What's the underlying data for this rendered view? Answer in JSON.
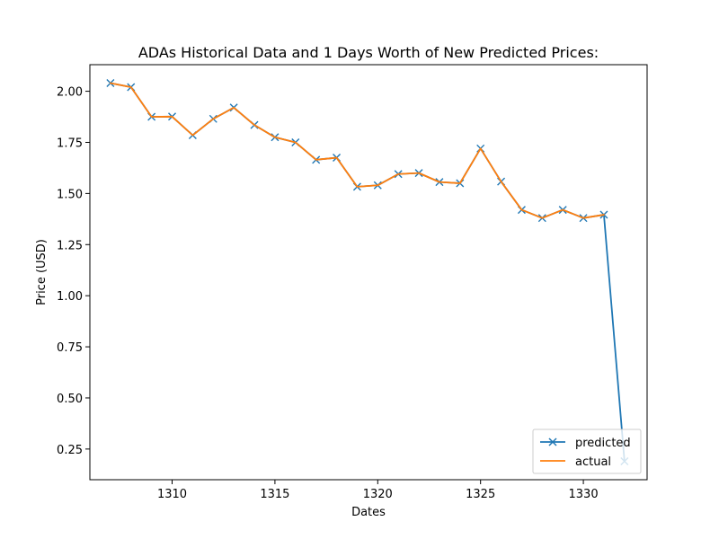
{
  "chart_data": {
    "type": "line",
    "title": "ADAs Historical Data and 1 Days Worth of New Predicted Prices:",
    "xlabel": "Dates",
    "ylabel": "Price (USD)",
    "xlim": [
      1306,
      1333.1
    ],
    "ylim": [
      0.1,
      2.13
    ],
    "x_ticks": [
      1310,
      1315,
      1320,
      1325,
      1330
    ],
    "y_ticks": [
      0.25,
      0.5,
      0.75,
      1.0,
      1.25,
      1.5,
      1.75,
      2.0
    ],
    "x_tick_labels": [
      "1310",
      "1315",
      "1320",
      "1325",
      "1330"
    ],
    "y_tick_labels": [
      "0.25",
      "0.50",
      "0.75",
      "1.00",
      "1.25",
      "1.50",
      "1.75",
      "2.00"
    ],
    "grid": false,
    "legend_position": "lower right",
    "series": [
      {
        "name": "predicted",
        "color": "#1f77b4",
        "marker": "x",
        "x": [
          1307,
          1308,
          1309,
          1310,
          1311,
          1312,
          1313,
          1314,
          1315,
          1316,
          1317,
          1318,
          1319,
          1320,
          1321,
          1322,
          1323,
          1324,
          1325,
          1326,
          1327,
          1328,
          1329,
          1330,
          1331,
          1332
        ],
        "y": [
          2.04,
          2.02,
          1.875,
          1.876,
          1.785,
          1.865,
          1.92,
          1.835,
          1.775,
          1.75,
          1.665,
          1.675,
          1.533,
          1.54,
          1.595,
          1.6,
          1.556,
          1.55,
          1.72,
          1.558,
          1.42,
          1.38,
          1.42,
          1.38,
          1.396,
          0.19
        ]
      },
      {
        "name": "actual",
        "color": "#ff7f0e",
        "marker": "",
        "x": [
          1307,
          1308,
          1309,
          1310,
          1311,
          1312,
          1313,
          1314,
          1315,
          1316,
          1317,
          1318,
          1319,
          1320,
          1321,
          1322,
          1323,
          1324,
          1325,
          1326,
          1327,
          1328,
          1329,
          1330,
          1331
        ],
        "y": [
          2.04,
          2.02,
          1.875,
          1.876,
          1.785,
          1.865,
          1.92,
          1.835,
          1.775,
          1.75,
          1.665,
          1.675,
          1.533,
          1.54,
          1.595,
          1.6,
          1.556,
          1.55,
          1.72,
          1.558,
          1.42,
          1.38,
          1.42,
          1.38,
          1.396
        ]
      }
    ]
  }
}
